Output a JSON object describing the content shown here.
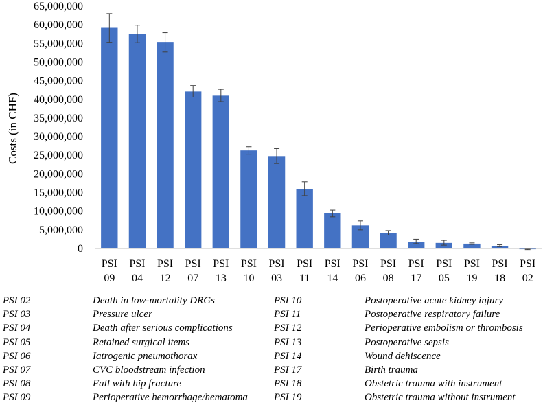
{
  "chart_data": {
    "type": "bar",
    "title": "",
    "xlabel": "",
    "ylabel": "Costs (in CHF)",
    "ylim": [
      0,
      65000000
    ],
    "ytick_step": 5000000,
    "y_tick_labels": [
      "0",
      "5,000,000",
      "10,000,000",
      "15,000,000",
      "20,000,000",
      "25,000,000",
      "30,000,000",
      "35,000,000",
      "40,000,000",
      "45,000,000",
      "50,000,000",
      "55,000,000",
      "60,000,000",
      "65,000,000"
    ],
    "grid": false,
    "bar_color": "#4472C4",
    "categories": [
      {
        "line1": "PSI",
        "line2": "09"
      },
      {
        "line1": "PSI",
        "line2": "04"
      },
      {
        "line1": "PSI",
        "line2": "12"
      },
      {
        "line1": "PSI",
        "line2": "07"
      },
      {
        "line1": "PSI",
        "line2": "13"
      },
      {
        "line1": "PSI",
        "line2": "10"
      },
      {
        "line1": "PSI",
        "line2": "03"
      },
      {
        "line1": "PSI",
        "line2": "11"
      },
      {
        "line1": "PSI",
        "line2": "14"
      },
      {
        "line1": "PSI",
        "line2": "06"
      },
      {
        "line1": "PSI",
        "line2": "08"
      },
      {
        "line1": "PSI",
        "line2": "17"
      },
      {
        "line1": "PSI",
        "line2": "05"
      },
      {
        "line1": "PSI",
        "line2": "19"
      },
      {
        "line1": "PSI",
        "line2": "18"
      },
      {
        "line1": "PSI",
        "line2": "02"
      }
    ],
    "values": [
      59200000,
      57500000,
      55400000,
      42100000,
      41000000,
      26300000,
      24800000,
      16000000,
      9400000,
      6200000,
      4100000,
      1800000,
      1500000,
      1300000,
      700000,
      -200000
    ],
    "error_low": [
      55300000,
      55200000,
      52700000,
      40600000,
      39400000,
      25300000,
      22800000,
      14200000,
      8500000,
      5000000,
      3600000,
      1300000,
      900000,
      1100000,
      500000,
      -300000
    ],
    "error_high": [
      63000000,
      59900000,
      57900000,
      43700000,
      42700000,
      27300000,
      26800000,
      17900000,
      10300000,
      7400000,
      4800000,
      2500000,
      2200000,
      1500000,
      1000000,
      -100000
    ]
  },
  "legend": {
    "left": [
      {
        "code": "PSI 02",
        "desc": "Death in low-mortality DRGs"
      },
      {
        "code": "PSI 03",
        "desc": "Pressure ulcer"
      },
      {
        "code": "PSI 04",
        "desc": "Death after serious complications"
      },
      {
        "code": "PSI 05",
        "desc": "Retained surgical items"
      },
      {
        "code": "PSI 06",
        "desc": "Iatrogenic pneumothorax"
      },
      {
        "code": "PSI 07",
        "desc": "CVC bloodstream infection"
      },
      {
        "code": "PSI 08",
        "desc": "Fall with hip fracture"
      },
      {
        "code": "PSI 09",
        "desc": "Perioperative hemorrhage/hematoma"
      }
    ],
    "right": [
      {
        "code": "PSI 10",
        "desc": "Postoperative acute kidney injury"
      },
      {
        "code": "PSI 11",
        "desc": "Postoperative respiratory failure"
      },
      {
        "code": "PSI 12",
        "desc": "Perioperative embolism or thrombosis"
      },
      {
        "code": "PSI 13",
        "desc": "Postoperative sepsis"
      },
      {
        "code": "PSI 14",
        "desc": "Wound dehiscence"
      },
      {
        "code": "PSI 17",
        "desc": "Birth trauma"
      },
      {
        "code": "PSI 18",
        "desc": "Obstetric trauma with instrument"
      },
      {
        "code": "PSI 19",
        "desc": "Obstetric trauma without instrument"
      }
    ]
  }
}
